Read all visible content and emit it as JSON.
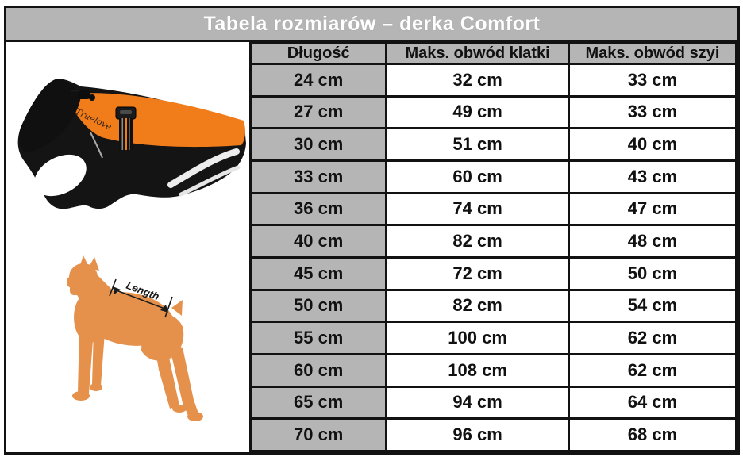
{
  "title": "Tabela rozmiarów – derka Comfort",
  "chart_data": {
    "type": "table",
    "title": "Tabela rozmiarów – derka Comfort",
    "columns": [
      "Długość",
      "Maks. obwód klatki",
      "Maks. obwód szyi"
    ],
    "rows": [
      [
        "24 cm",
        "32 cm",
        "33 cm"
      ],
      [
        "27 cm",
        "49 cm",
        "33 cm"
      ],
      [
        "30 cm",
        "51 cm",
        "40 cm"
      ],
      [
        "33 cm",
        "60 cm",
        "43 cm"
      ],
      [
        "36 cm",
        "74 cm",
        "47 cm"
      ],
      [
        "40 cm",
        "82 cm",
        "48 cm"
      ],
      [
        "45 cm",
        "72 cm",
        "50 cm"
      ],
      [
        "50 cm",
        "82 cm",
        "54 cm"
      ],
      [
        "55 cm",
        "100 cm",
        "62 cm"
      ],
      [
        "60 cm",
        "108 cm",
        "62 cm"
      ],
      [
        "65 cm",
        "94 cm",
        "64 cm"
      ],
      [
        "70 cm",
        "96 cm",
        "68 cm"
      ]
    ]
  },
  "product": {
    "brand_script": "Truelove"
  },
  "diagram": {
    "length_label": "Length"
  },
  "colors": {
    "header_gray": "#b5b5b5",
    "border_black": "#121212",
    "title_text": "#ffffff",
    "coat_orange": "#f07d1a",
    "coat_black": "#141414",
    "dog_orange": "#e5914c",
    "reflective_white": "#ededed"
  }
}
